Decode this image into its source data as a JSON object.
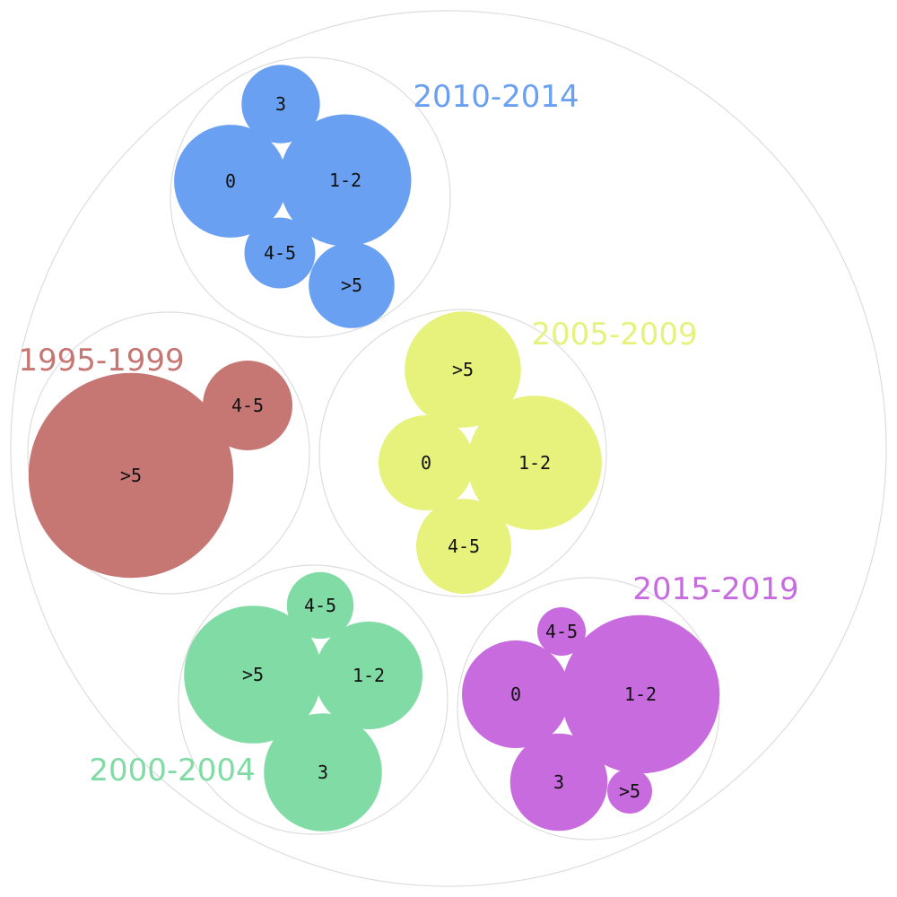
{
  "chart_data": {
    "type": "packed-bubble",
    "groups": [
      {
        "name": "2010-2014",
        "color": "#6aa0f2",
        "items": [
          {
            "label": "0",
            "value": 11.4
          },
          {
            "label": "1-2",
            "value": 15.6
          },
          {
            "label": "3",
            "value": 5.5
          },
          {
            "label": "4-5",
            "value": 4.5
          },
          {
            "label": ">5",
            "value": 6.6
          }
        ]
      },
      {
        "name": "1995-1999",
        "color": "#c67774",
        "items": [
          {
            "label": ">5",
            "value": 37.6
          },
          {
            "label": "4-5",
            "value": 7.2
          }
        ]
      },
      {
        "name": "2005-2009",
        "color": "#e6f27c",
        "items": [
          {
            "label": ">5",
            "value": 12.1
          },
          {
            "label": "0",
            "value": 8.1
          },
          {
            "label": "1-2",
            "value": 16.2
          },
          {
            "label": "4-5",
            "value": 8.1
          }
        ]
      },
      {
        "name": "2000-2004",
        "color": "#80dba5",
        "items": [
          {
            "label": "4-5",
            "value": 4.0
          },
          {
            "label": ">5",
            "value": 17.0
          },
          {
            "label": "1-2",
            "value": 10.4
          },
          {
            "label": "3",
            "value": 12.5
          }
        ]
      },
      {
        "name": "2015-2019",
        "color": "#c76bdf",
        "items": [
          {
            "label": "4-5",
            "value": 2.1
          },
          {
            "label": "0",
            "value": 10.4
          },
          {
            "label": "1-2",
            "value": 22.5
          },
          {
            "label": "3",
            "value": 8.5
          },
          {
            "label": ">5",
            "value": 1.8
          }
        ]
      }
    ]
  }
}
